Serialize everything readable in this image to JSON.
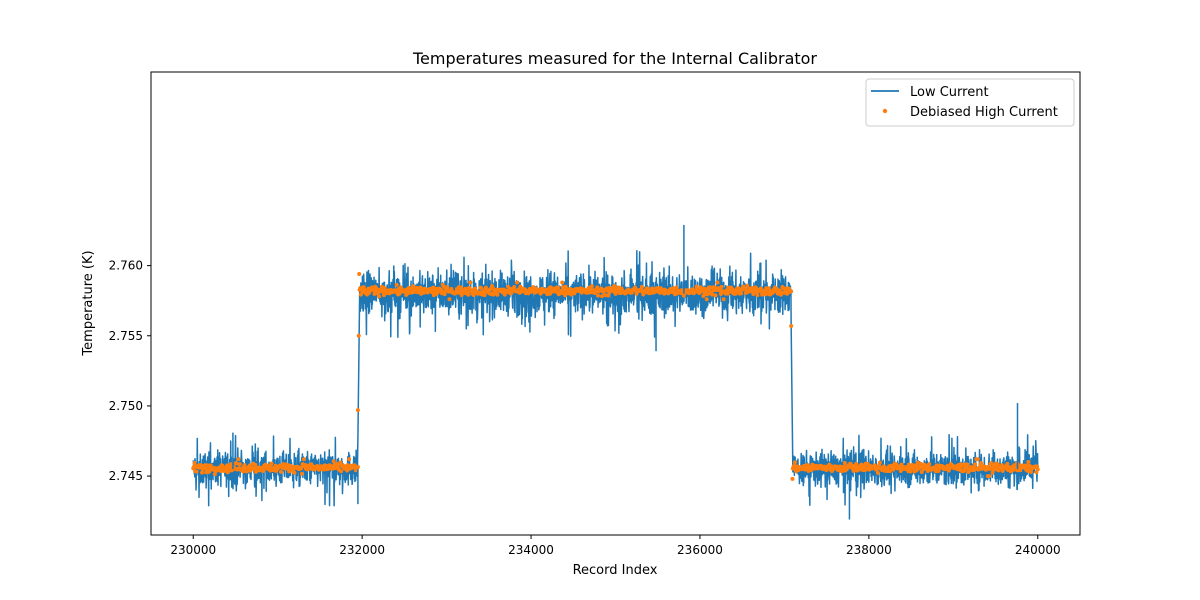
{
  "chart_data": {
    "type": "line",
    "title": "Temperatures measured for the Internal Calibrator",
    "xlabel": "Record Index",
    "ylabel": "Temperature (K)",
    "xlim": [
      229500,
      240500
    ],
    "ylim": [
      2.7408,
      2.7738
    ],
    "x_ticks": [
      230000,
      232000,
      234000,
      236000,
      238000,
      240000
    ],
    "y_ticks": [
      2.745,
      2.75,
      2.755,
      2.76
    ],
    "grid": false,
    "legend_position": "top-right",
    "colors": {
      "low_current": "#1f77b4",
      "high_current": "#ff7f0e"
    },
    "series": [
      {
        "name": "Low Current",
        "kind": "line",
        "color": "#1f77b4",
        "segments": [
          {
            "x_start": 230000,
            "x_end": 231950,
            "level": 2.7455,
            "spread": 0.0011,
            "min": 2.7427,
            "max": 2.7481
          },
          {
            "x_start": 231970,
            "x_end": 237080,
            "level": 2.758,
            "spread": 0.0013,
            "min": 2.7539,
            "max": 2.7629
          },
          {
            "x_start": 237100,
            "x_end": 240000,
            "level": 2.7455,
            "spread": 0.0011,
            "min": 2.7419,
            "max": 2.7502
          }
        ]
      },
      {
        "name": "Debiased High Current",
        "kind": "scatter",
        "color": "#ff7f0e",
        "segments": [
          {
            "x_start": 230000,
            "x_end": 231950,
            "level": 2.7456,
            "spread": 0.00015
          },
          {
            "x_start": 231970,
            "x_end": 237080,
            "level": 2.7582,
            "spread": 0.00015
          },
          {
            "x_start": 237100,
            "x_end": 240000,
            "level": 2.7456,
            "spread": 0.00015
          }
        ],
        "transition_points": [
          {
            "x": 231950,
            "y": 2.7497
          },
          {
            "x": 231960,
            "y": 2.755
          },
          {
            "x": 231965,
            "y": 2.7594
          },
          {
            "x": 237080,
            "y": 2.7557
          },
          {
            "x": 237095,
            "y": 2.7448
          }
        ]
      }
    ]
  }
}
